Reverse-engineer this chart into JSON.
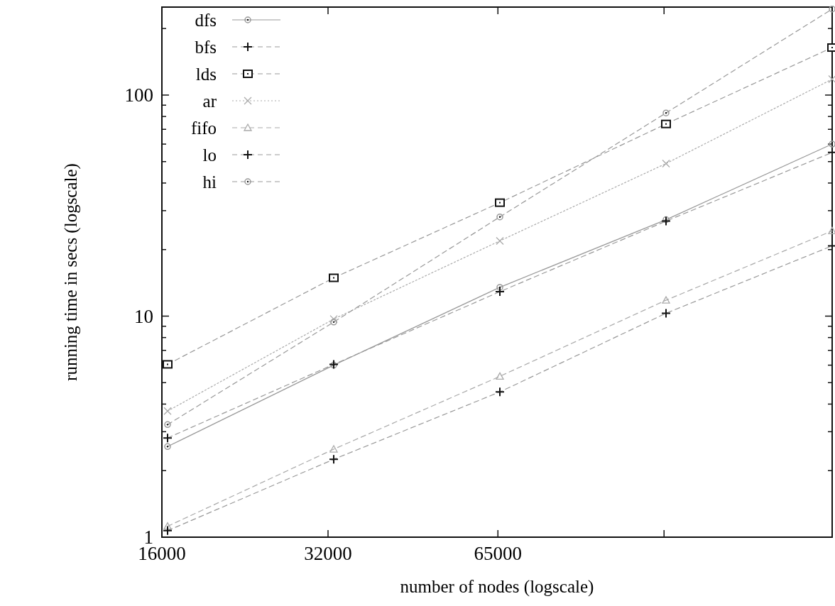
{
  "chart_data": {
    "type": "line",
    "xlabel": "number of nodes (logscale)",
    "ylabel": "running time in secs (logscale)",
    "log": "xy",
    "xlim": [
      16000,
      262144
    ],
    "ylim": [
      1,
      250
    ],
    "xticks": [
      16000,
      32000,
      65000,
      {
        "value": 130000,
        "label": null
      }
    ],
    "yticks": [
      1,
      {
        "value": 2,
        "label": null
      },
      {
        "value": 3,
        "label": null
      },
      {
        "value": 4,
        "label": null
      },
      {
        "value": 5,
        "label": null
      },
      {
        "value": 6,
        "label": null
      },
      {
        "value": 7,
        "label": null
      },
      {
        "value": 8,
        "label": null
      },
      {
        "value": 9,
        "label": null
      },
      10,
      {
        "value": 20,
        "label": null
      },
      {
        "value": 30,
        "label": null
      },
      {
        "value": 40,
        "label": null
      },
      {
        "value": 50,
        "label": null
      },
      {
        "value": 60,
        "label": null
      },
      {
        "value": 70,
        "label": null
      },
      {
        "value": 80,
        "label": null
      },
      {
        "value": 90,
        "label": null
      },
      100,
      {
        "value": 200,
        "label": null
      }
    ],
    "x": [
      16384,
      32768,
      65536,
      131072,
      262144
    ],
    "legend": "top left",
    "grid": false,
    "series": [
      {
        "name": "dfs",
        "color": "#999999",
        "marker": "circle",
        "line_style": "solid",
        "values": [
          2.57,
          6.0,
          13.5,
          27.3,
          60
        ]
      },
      {
        "name": "bfs",
        "color": "#999999",
        "marker": "plus",
        "line_style": "dashed",
        "values": [
          2.81,
          6.05,
          12.9,
          26.9,
          55
        ]
      },
      {
        "name": "lds",
        "color": "#999999",
        "marker": "square",
        "line_style": "dashed",
        "values": [
          6.05,
          14.9,
          32.6,
          74,
          164
        ]
      },
      {
        "name": "ar",
        "color": "#aaaaaa",
        "marker": "cross",
        "line_style": "dotted",
        "values": [
          3.72,
          9.7,
          21.9,
          49,
          118
        ]
      },
      {
        "name": "fifo",
        "color": "#aaaaaa",
        "marker": "triangle",
        "line_style": "dashed",
        "values": [
          1.12,
          2.5,
          5.34,
          11.8,
          24.3
        ]
      },
      {
        "name": "lo",
        "color": "#999999",
        "marker": "plus",
        "line_style": "dashed",
        "values": [
          1.07,
          2.25,
          4.54,
          10.3,
          20.8
        ]
      },
      {
        "name": "hi",
        "color": "#999999",
        "marker": "circle",
        "line_style": "dashed",
        "values": [
          3.23,
          9.4,
          28.1,
          83,
          245
        ]
      }
    ]
  }
}
